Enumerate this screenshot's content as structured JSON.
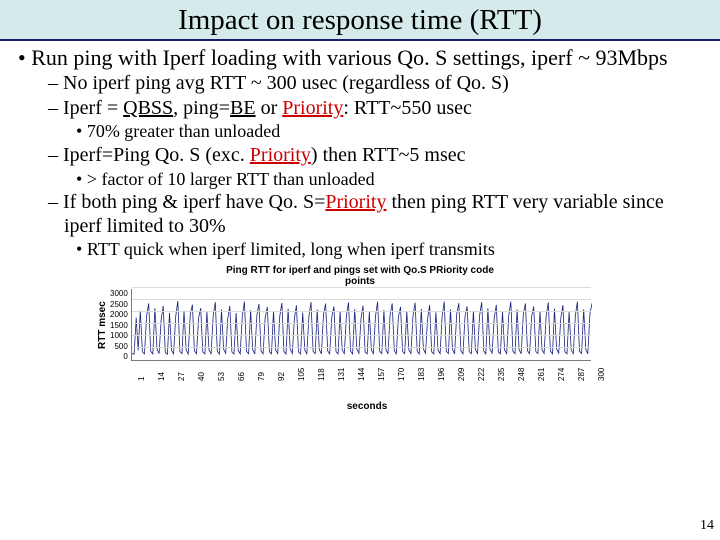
{
  "title": "Impact on response time (RTT)",
  "bullets": {
    "l1": "Run ping with Iperf loading with various Qo. S settings, iperf ~ 93Mbps",
    "l2a": "No iperf ping avg RTT ~ 300 usec (regardless of Qo. S)",
    "l2b_pre": "Iperf = ",
    "l2b_qbss": "QBSS",
    "l2b_mid": ", ping=",
    "l2b_be": "BE",
    "l2b_or": " or ",
    "l2b_priority": "Priority",
    "l2b_post": ": RTT~550 usec",
    "l3a": "70% greater than unloaded",
    "l2c_pre": "Iperf=Ping Qo. S (exc. ",
    "l2c_priority": "Priority",
    "l2c_post": ") then RTT~5 msec",
    "l3b": "> factor of 10 larger RTT than unloaded",
    "l2d_pre": "If both ping & iperf have Qo. S=",
    "l2d_priority": "Priority",
    "l2d_post": " then ping RTT very variable since iperf limited to 30%",
    "l3c": "RTT quick when iperf limited, long when iperf transmits"
  },
  "chart": {
    "title_line1": "Ping RTT for iperf and pings set with Qo.S PRiority code",
    "title_line2": "points",
    "ylabel": "RTT msec",
    "xlabel": "seconds",
    "ylim": [
      0,
      3000
    ],
    "ytick_step": 500,
    "yticks": [
      "3000",
      "2500",
      "2000",
      "1500",
      "1000",
      "500",
      "0"
    ],
    "xticks": [
      "1",
      "14",
      "27",
      "40",
      "53",
      "66",
      "79",
      "92",
      "105",
      "118",
      "131",
      "144",
      "157",
      "170",
      "183",
      "196",
      "209",
      "222",
      "235",
      "248",
      "261",
      "274",
      "287",
      "300"
    ],
    "line_color": "#1a237e",
    "grid_color": "#dcdcdc",
    "background_color": "#ffffff",
    "data": [
      320,
      280,
      1800,
      450,
      2100,
      380,
      300,
      1900,
      2400,
      410,
      290,
      2200,
      500,
      310,
      1700,
      2300,
      360,
      280,
      2000,
      440,
      300,
      1850,
      2500,
      390,
      310,
      2100,
      470,
      290,
      1950,
      2350,
      420,
      300,
      1800,
      2200,
      380,
      295,
      2050,
      460,
      305,
      1900,
      2450,
      400,
      285,
      2150,
      490,
      315,
      1750,
      2300,
      370,
      290,
      2000,
      450,
      300,
      1880,
      2480,
      395,
      305,
      2120,
      475,
      292,
      1920,
      2380,
      415,
      298,
      1820,
      2250,
      385,
      300,
      2080,
      465,
      308,
      1870,
      2420,
      405,
      288,
      2180,
      495,
      318,
      1780,
      2320,
      375,
      293,
      2020,
      455,
      302,
      1860,
      2460,
      398,
      307,
      2140,
      478,
      294,
      1940,
      2390,
      418,
      299,
      1830,
      2270,
      388,
      301,
      2060,
      468,
      310,
      1890,
      2440,
      408,
      290,
      2160,
      498,
      320,
      1760,
      2310,
      378,
      295,
      2040,
      458,
      304,
      1870,
      2475,
      400,
      309,
      2130,
      480,
      296,
      1930,
      2400,
      420,
      300,
      1840,
      2260,
      390,
      303,
      2070,
      470,
      312,
      1880,
      2430,
      410,
      292,
      2170,
      500,
      322,
      1770,
      2330,
      380,
      297,
      2030,
      460,
      306,
      1860,
      2470,
      402,
      311,
      2150,
      482,
      298,
      1950,
      2410,
      422,
      302,
      1850,
      2280,
      392,
      305,
      2090,
      472,
      314,
      1900,
      2450,
      412,
      294,
      2190,
      502,
      324,
      1790,
      2340,
      382,
      299,
      2050,
      462,
      308,
      1880,
      2480,
      404,
      313,
      2140,
      484,
      300,
      1940,
      2395,
      424,
      304,
      1845,
      2275,
      394,
      307,
      2080,
      474,
      316,
      1890,
      2440,
      414,
      296,
      2180,
      504,
      326,
      1780,
      2330,
      384,
      301,
      2060,
      464,
      310,
      1870,
      2475,
      406,
      315,
      2155,
      486,
      302,
      1955,
      2405
    ]
  },
  "page_number": "14"
}
